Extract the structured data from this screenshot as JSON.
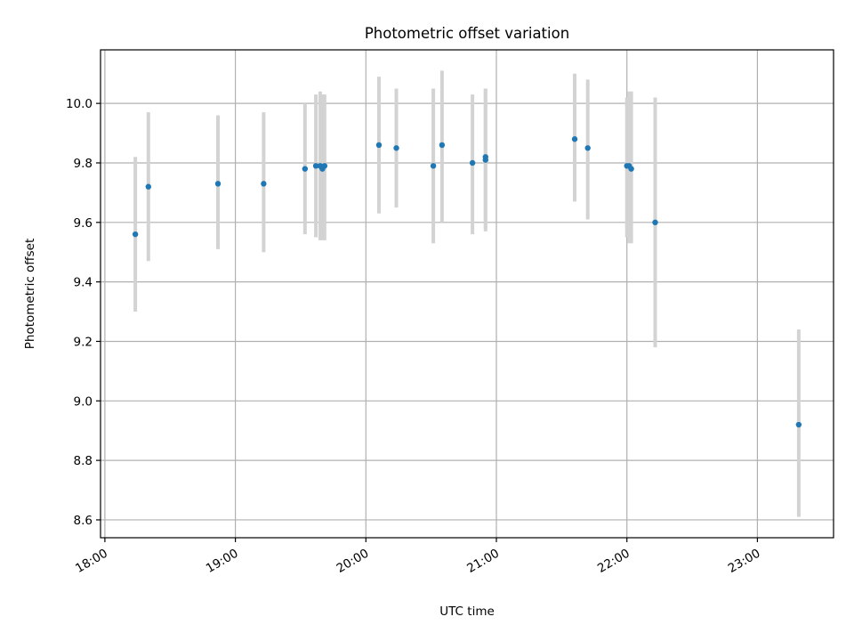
{
  "chart_data": {
    "type": "scatter",
    "title": "Photometric offset variation",
    "xlabel": "UTC time",
    "ylabel": "Photometric offset",
    "x_tick_labels": [
      "18:00",
      "19:00",
      "20:00",
      "21:00",
      "22:00",
      "23:00"
    ],
    "y_tick_labels": [
      "8.6",
      "8.8",
      "9.0",
      "9.2",
      "9.4",
      "9.6",
      "9.8",
      "10.0"
    ],
    "ylim": [
      8.54,
      10.18
    ],
    "xlim": [
      "17:58",
      "23:35"
    ],
    "grid": true,
    "errorbar_color": "#d3d3d3",
    "marker_color": "#1f77b4",
    "points": [
      {
        "time": "18:14",
        "value": 9.56,
        "low": 9.3,
        "high": 9.82
      },
      {
        "time": "18:20",
        "value": 9.72,
        "low": 9.47,
        "high": 9.97
      },
      {
        "time": "18:52",
        "value": 9.73,
        "low": 9.51,
        "high": 9.96
      },
      {
        "time": "19:13",
        "value": 9.73,
        "low": 9.5,
        "high": 9.97
      },
      {
        "time": "19:32",
        "value": 9.78,
        "low": 9.56,
        "high": 10.0
      },
      {
        "time": "19:37",
        "value": 9.79,
        "low": 9.55,
        "high": 10.03
      },
      {
        "time": "19:39",
        "value": 9.79,
        "low": 9.54,
        "high": 10.04
      },
      {
        "time": "19:40",
        "value": 9.78,
        "low": 9.54,
        "high": 10.03
      },
      {
        "time": "19:41",
        "value": 9.79,
        "low": 9.54,
        "high": 10.03
      },
      {
        "time": "20:06",
        "value": 9.86,
        "low": 9.63,
        "high": 10.09
      },
      {
        "time": "20:14",
        "value": 9.85,
        "low": 9.65,
        "high": 10.05
      },
      {
        "time": "20:31",
        "value": 9.79,
        "low": 9.53,
        "high": 10.05
      },
      {
        "time": "20:35",
        "value": 9.86,
        "low": 9.6,
        "high": 10.11
      },
      {
        "time": "20:49",
        "value": 9.8,
        "low": 9.56,
        "high": 10.03
      },
      {
        "time": "20:55",
        "value": 9.81,
        "low": 9.57,
        "high": 10.05
      },
      {
        "time": "20:55",
        "value": 9.82,
        "low": 9.58,
        "high": 10.05
      },
      {
        "time": "21:36",
        "value": 9.88,
        "low": 9.67,
        "high": 10.1
      },
      {
        "time": "21:42",
        "value": 9.85,
        "low": 9.61,
        "high": 10.08
      },
      {
        "time": "22:00",
        "value": 9.79,
        "low": 9.55,
        "high": 10.02
      },
      {
        "time": "22:01",
        "value": 9.79,
        "low": 9.53,
        "high": 10.04
      },
      {
        "time": "22:02",
        "value": 9.78,
        "low": 9.53,
        "high": 10.04
      },
      {
        "time": "22:13",
        "value": 9.6,
        "low": 9.18,
        "high": 10.02
      },
      {
        "time": "23:19",
        "value": 8.92,
        "low": 8.61,
        "high": 9.24
      }
    ]
  }
}
